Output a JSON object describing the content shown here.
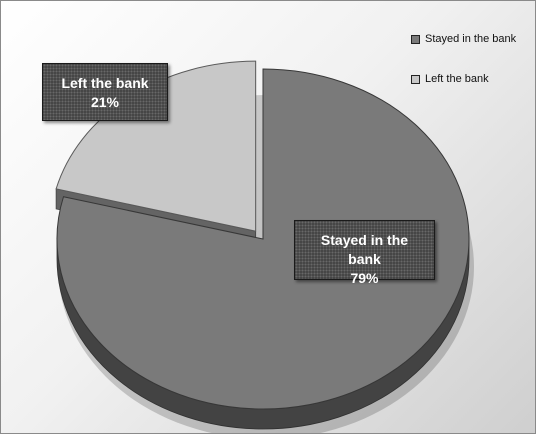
{
  "chart_data": {
    "type": "pie",
    "title": "",
    "slices": [
      {
        "name": "Stayed in the bank",
        "value": 79,
        "label_pct": "79%",
        "color": "#7a7a7a"
      },
      {
        "name": "Left the bank",
        "value": 21,
        "label_pct": "21%",
        "color": "#c8c8c8"
      }
    ],
    "legend_position": "top-right",
    "exploded_slice": "Left the bank",
    "three_d": true
  }
}
